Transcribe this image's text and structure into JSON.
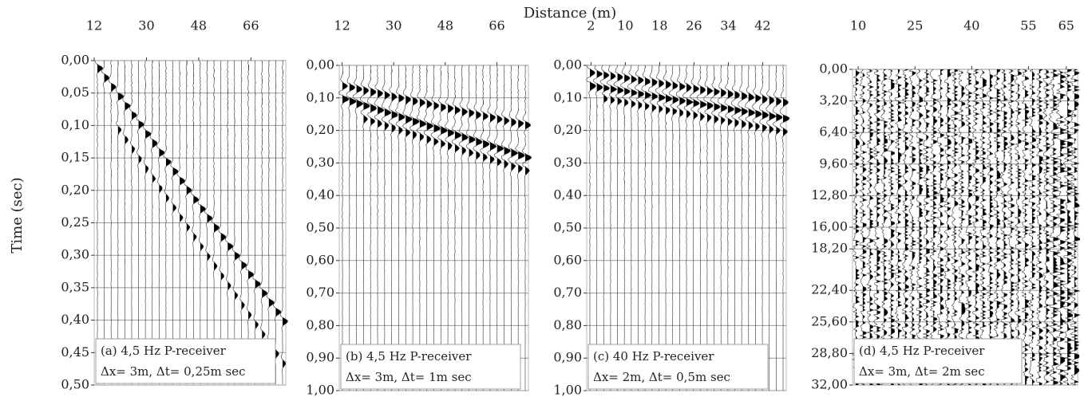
{
  "figure": {
    "xlabel": "Distance (m)",
    "ylabel": "Time (sec)"
  },
  "chart_data": [
    {
      "type": "seismogram",
      "annotation": [
        "(a) 4,5 Hz P-receiver",
        "Δx= 3m, Δt= 0,25m sec"
      ],
      "xlim": [
        12,
        78
      ],
      "xticks": [
        12,
        30,
        48,
        66
      ],
      "ylim": [
        0,
        0.5
      ],
      "yticks": [
        {
          "value": 0,
          "label": "0,00"
        },
        {
          "value": 0.05,
          "label": "0,05"
        },
        {
          "value": 0.1,
          "label": "0,10"
        },
        {
          "value": 0.15,
          "label": "0,15"
        },
        {
          "value": 0.2,
          "label": "0,20"
        },
        {
          "value": 0.25,
          "label": "0,25"
        },
        {
          "value": 0.3,
          "label": "0,30"
        },
        {
          "value": 0.35,
          "label": "0,35"
        },
        {
          "value": 0.4,
          "label": "0,40"
        },
        {
          "value": 0.45,
          "label": "0,45"
        },
        {
          "value": 0.5,
          "label": "0,50"
        }
      ],
      "grid": true
    },
    {
      "type": "seismogram",
      "annotation": [
        "(b) 4,5 Hz P-receiver",
        "Δx= 3m, Δt= 1m sec"
      ],
      "xlim": [
        11,
        77
      ],
      "xticks": [
        12,
        30,
        48,
        66
      ],
      "ylim": [
        0,
        1
      ],
      "yticks": [
        {
          "value": 0,
          "label": "0,00"
        },
        {
          "value": 0.1,
          "label": "0,10"
        },
        {
          "value": 0.2,
          "label": "0,20"
        },
        {
          "value": 0.3,
          "label": "0,30"
        },
        {
          "value": 0.4,
          "label": "0,40"
        },
        {
          "value": 0.5,
          "label": "0,50"
        },
        {
          "value": 0.6,
          "label": "0,60"
        },
        {
          "value": 0.7,
          "label": "0,70"
        },
        {
          "value": 0.8,
          "label": "0,80"
        },
        {
          "value": 0.9,
          "label": "0,90"
        },
        {
          "value": 1,
          "label": "1,00"
        }
      ],
      "grid": true
    },
    {
      "type": "seismogram",
      "annotation": [
        "(c) 40 Hz P-receiver",
        "Δx= 2m, Δt= 0,5m sec"
      ],
      "xlim": [
        1,
        47.5
      ],
      "xticks": [
        2,
        10,
        18,
        26,
        34,
        42
      ],
      "ylim": [
        0,
        1
      ],
      "yticks": [
        {
          "value": 0,
          "label": "0,00"
        },
        {
          "value": 0.1,
          "label": "0,10"
        },
        {
          "value": 0.2,
          "label": "0,20"
        },
        {
          "value": 0.3,
          "label": "0,30"
        },
        {
          "value": 0.4,
          "label": "0,40"
        },
        {
          "value": 0.5,
          "label": "0,50"
        },
        {
          "value": 0.6,
          "label": "0,60"
        },
        {
          "value": 0.7,
          "label": "0,70"
        },
        {
          "value": 0.8,
          "label": "0,80"
        },
        {
          "value": 0.9,
          "label": "0,90"
        },
        {
          "value": 1,
          "label": "1,00"
        }
      ],
      "grid": true
    },
    {
      "type": "seismogram",
      "annotation": [
        "(d) 4,5 Hz P-receiver",
        "Δx= 3m, Δt= 2m sec"
      ],
      "xlim": [
        8.5,
        68
      ],
      "xticks": [
        10,
        25,
        40,
        55,
        65
      ],
      "ylim": [
        0,
        32
      ],
      "yticks": [
        {
          "value": 0,
          "label": "0,00"
        },
        {
          "value": 3.2,
          "label": "3,20"
        },
        {
          "value": 6.4,
          "label": "6,40"
        },
        {
          "value": 9.6,
          "label": "9,60"
        },
        {
          "value": 12.8,
          "label": "12,80"
        },
        {
          "value": 16,
          "label": "16,00"
        },
        {
          "value": 18.2,
          "label": "18,20"
        },
        {
          "value": 22.4,
          "label": "22,40"
        },
        {
          "value": 25.6,
          "label": "25,60"
        },
        {
          "value": 28.8,
          "label": "28,80"
        },
        {
          "value": 32,
          "label": "32,00"
        }
      ],
      "grid": true
    }
  ]
}
